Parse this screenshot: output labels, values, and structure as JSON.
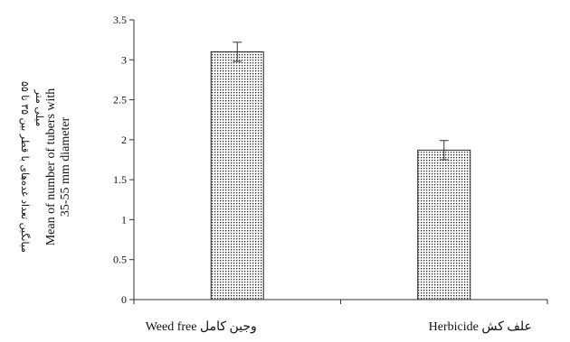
{
  "chart_data": {
    "type": "bar",
    "categories": [
      "Weed free وجین کامل",
      "Herbicide علف کش"
    ],
    "values": [
      3.1,
      1.87
    ],
    "errors": [
      0.12,
      0.12
    ],
    "ylim": [
      0,
      3.5
    ],
    "yticks": [
      "0",
      "0.5",
      "1",
      "1.5",
      "2",
      "2.5",
      "3",
      "3.5"
    ],
    "ylabel_en": [
      "Mean of number of tubers with",
      "35-55 mm diameter"
    ],
    "ylabel_fa": [
      "میانگین تعداد غده‌های با قطر بین ۳۵ تا ۵۵",
      "میلی متر"
    ],
    "bar_fill": "#ffffff",
    "bar_pattern_color": "#222222",
    "axis_color": "#333333"
  }
}
